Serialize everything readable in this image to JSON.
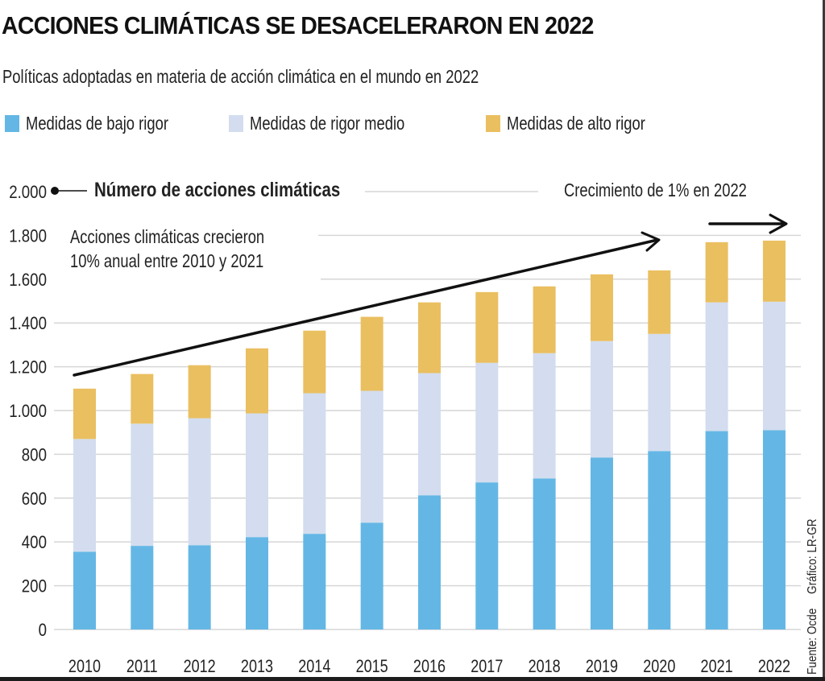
{
  "title": "ACCIONES CLIMÁTICAS SE DESACELERARON EN 2022",
  "subtitle": "Políticas adoptadas en materia de acción climática en el mundo en 2022",
  "legend": [
    {
      "label": "Medidas de bajo rigor",
      "color": "#64b7e5"
    },
    {
      "label": "Medidas de rigor medio",
      "color": "#d3ddef"
    },
    {
      "label": "Medidas de alto rigor",
      "color": "#eabf60"
    }
  ],
  "annotations": {
    "axis_title": "Número de acciones climáticas",
    "growth_line1": "Acciones climáticas crecieron",
    "growth_line2": "10% anual entre 2010 y 2021",
    "growth_2022": "Crecimiento de 1% en 2022"
  },
  "source": "Fuente: Ocde",
  "credit": "Gráfico: LR-GR",
  "chart_data": {
    "type": "bar",
    "stacked": true,
    "title": "ACCIONES CLIMÁTICAS SE DESACELERARON EN 2022",
    "subtitle": "Políticas adoptadas en materia de acción climática en el mundo en 2022",
    "xlabel": "",
    "ylabel": "Número de acciones climáticas",
    "ylim": [
      0,
      2000
    ],
    "yticks": [
      0,
      200,
      400,
      600,
      800,
      1000,
      1200,
      1400,
      1600,
      1800,
      2000
    ],
    "ytick_labels": [
      "0",
      "200",
      "400",
      "600",
      "800",
      "1.000",
      "1.200",
      "1.400",
      "1.600",
      "1.800",
      "2.000"
    ],
    "grid": true,
    "legend_position": "top",
    "categories": [
      "2010",
      "2011",
      "2012",
      "2013",
      "2014",
      "2015",
      "2016",
      "2017",
      "2018",
      "2019",
      "2020",
      "2021",
      "2022"
    ],
    "series": [
      {
        "name": "Medidas de bajo rigor",
        "color": "#64b7e5",
        "values": [
          355,
          382,
          385,
          422,
          437,
          488,
          613,
          672,
          690,
          785,
          815,
          906,
          910
        ]
      },
      {
        "name": "Medidas de rigor medio",
        "color": "#d3ddef",
        "values": [
          515,
          558,
          580,
          565,
          642,
          602,
          558,
          546,
          572,
          532,
          535,
          588,
          587
        ]
      },
      {
        "name": "Medidas de alto rigor",
        "color": "#eabf60",
        "values": [
          230,
          227,
          242,
          297,
          286,
          338,
          323,
          323,
          305,
          305,
          290,
          275,
          279
        ]
      }
    ],
    "totals": [
      1100,
      1167,
      1207,
      1284,
      1365,
      1428,
      1494,
      1541,
      1567,
      1622,
      1640,
      1769,
      1776
    ],
    "annotations": [
      "Acciones climáticas crecieron 10% anual entre 2010 y 2021",
      "Crecimiento de 1% en 2022"
    ]
  }
}
